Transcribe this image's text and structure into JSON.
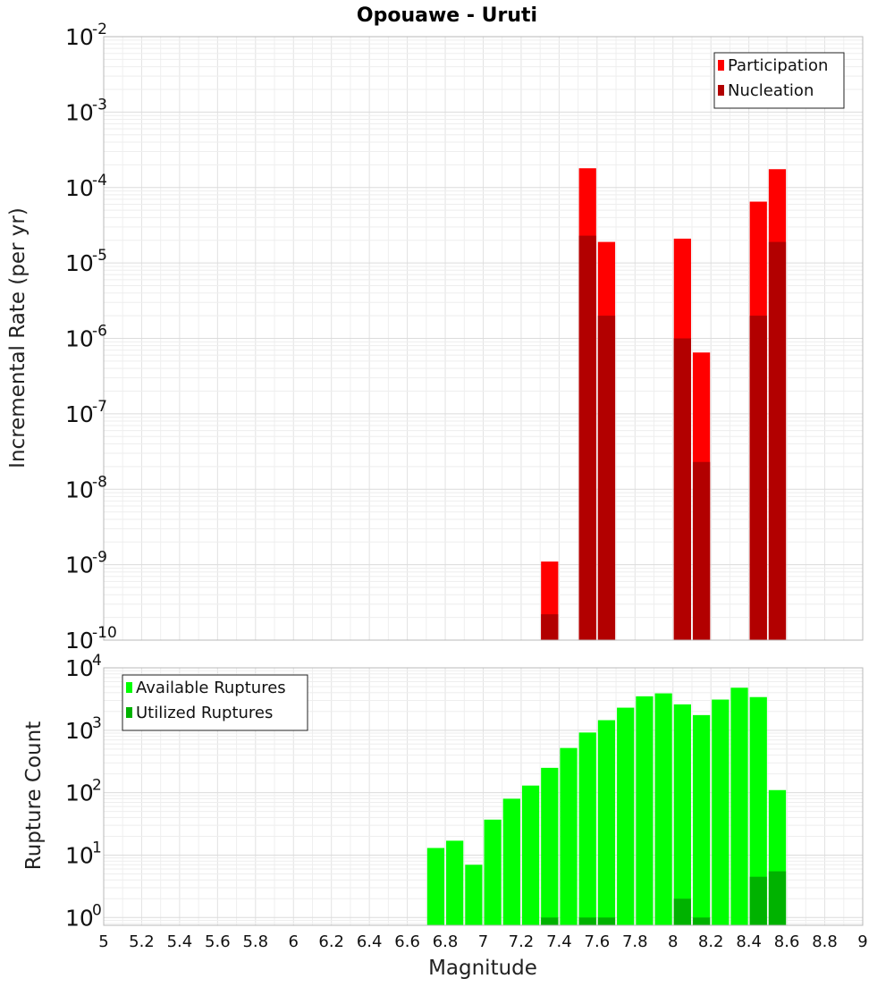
{
  "title": "Opouawe - Uruti",
  "xlabel": "Magnitude",
  "chart_data": [
    {
      "type": "bar",
      "panel": "top",
      "ylabel": "Incremental Rate (per yr)",
      "yscale": "log",
      "ylim": [
        1e-10,
        0.01
      ],
      "xlim": [
        5,
        9
      ],
      "grid": true,
      "legend_position": "top-right",
      "series": [
        {
          "name": "Participation",
          "color": "#ff0000",
          "x": [
            7.35,
            7.55,
            7.65,
            8.05,
            8.15,
            8.45,
            8.55
          ],
          "values": [
            1.1e-09,
            0.00018,
            1.9e-05,
            2.1e-05,
            6.5e-07,
            6.5e-05,
            0.000175
          ]
        },
        {
          "name": "Nucleation",
          "color": "#b20000",
          "x": [
            7.35,
            7.55,
            7.65,
            8.05,
            8.15,
            8.45,
            8.55
          ],
          "values": [
            2.2e-10,
            2.3e-05,
            2e-06,
            1e-06,
            2.3e-08,
            2e-06,
            1.9e-05
          ]
        }
      ]
    },
    {
      "type": "bar",
      "panel": "bottom",
      "ylabel": "Rupture Count",
      "yscale": "log",
      "ylim": [
        0.75,
        10000
      ],
      "xlim": [
        5,
        9
      ],
      "grid": true,
      "legend_position": "top-left",
      "series": [
        {
          "name": "Available Ruptures",
          "color": "#00ff00",
          "x": [
            6.75,
            6.85,
            6.95,
            7.05,
            7.15,
            7.25,
            7.35,
            7.45,
            7.55,
            7.65,
            7.75,
            7.85,
            7.95,
            8.05,
            8.15,
            8.25,
            8.35,
            8.45,
            8.55
          ],
          "values": [
            13,
            17,
            7,
            37,
            80,
            130,
            250,
            520,
            920,
            1450,
            2300,
            3500,
            3900,
            2600,
            1750,
            3100,
            4800,
            3400,
            110
          ]
        },
        {
          "name": "Utilized Ruptures",
          "color": "#00b200",
          "x": [
            7.35,
            7.55,
            7.65,
            8.05,
            8.15,
            8.45,
            8.55
          ],
          "values": [
            1,
            1,
            1,
            2,
            1,
            4.5,
            5.5
          ]
        }
      ]
    }
  ],
  "x_ticks": [
    "5",
    "5.2",
    "5.4",
    "5.6",
    "5.8",
    "6",
    "6.2",
    "6.4",
    "6.6",
    "6.8",
    "7",
    "7.2",
    "7.4",
    "7.6",
    "7.8",
    "8",
    "8.2",
    "8.4",
    "8.6",
    "8.8",
    "9"
  ],
  "top_y_ticks": [
    {
      "base": "10",
      "exp": "-2"
    },
    {
      "base": "10",
      "exp": "-3"
    },
    {
      "base": "10",
      "exp": "-4"
    },
    {
      "base": "10",
      "exp": "-5"
    },
    {
      "base": "10",
      "exp": "-6"
    },
    {
      "base": "10",
      "exp": "-7"
    },
    {
      "base": "10",
      "exp": "-8"
    },
    {
      "base": "10",
      "exp": "-9"
    },
    {
      "base": "10",
      "exp": "-10"
    }
  ],
  "bottom_y_ticks": [
    {
      "base": "10",
      "exp": "4"
    },
    {
      "base": "10",
      "exp": "3"
    },
    {
      "base": "10",
      "exp": "2"
    },
    {
      "base": "10",
      "exp": "1"
    },
    {
      "base": "10",
      "exp": "0"
    }
  ]
}
